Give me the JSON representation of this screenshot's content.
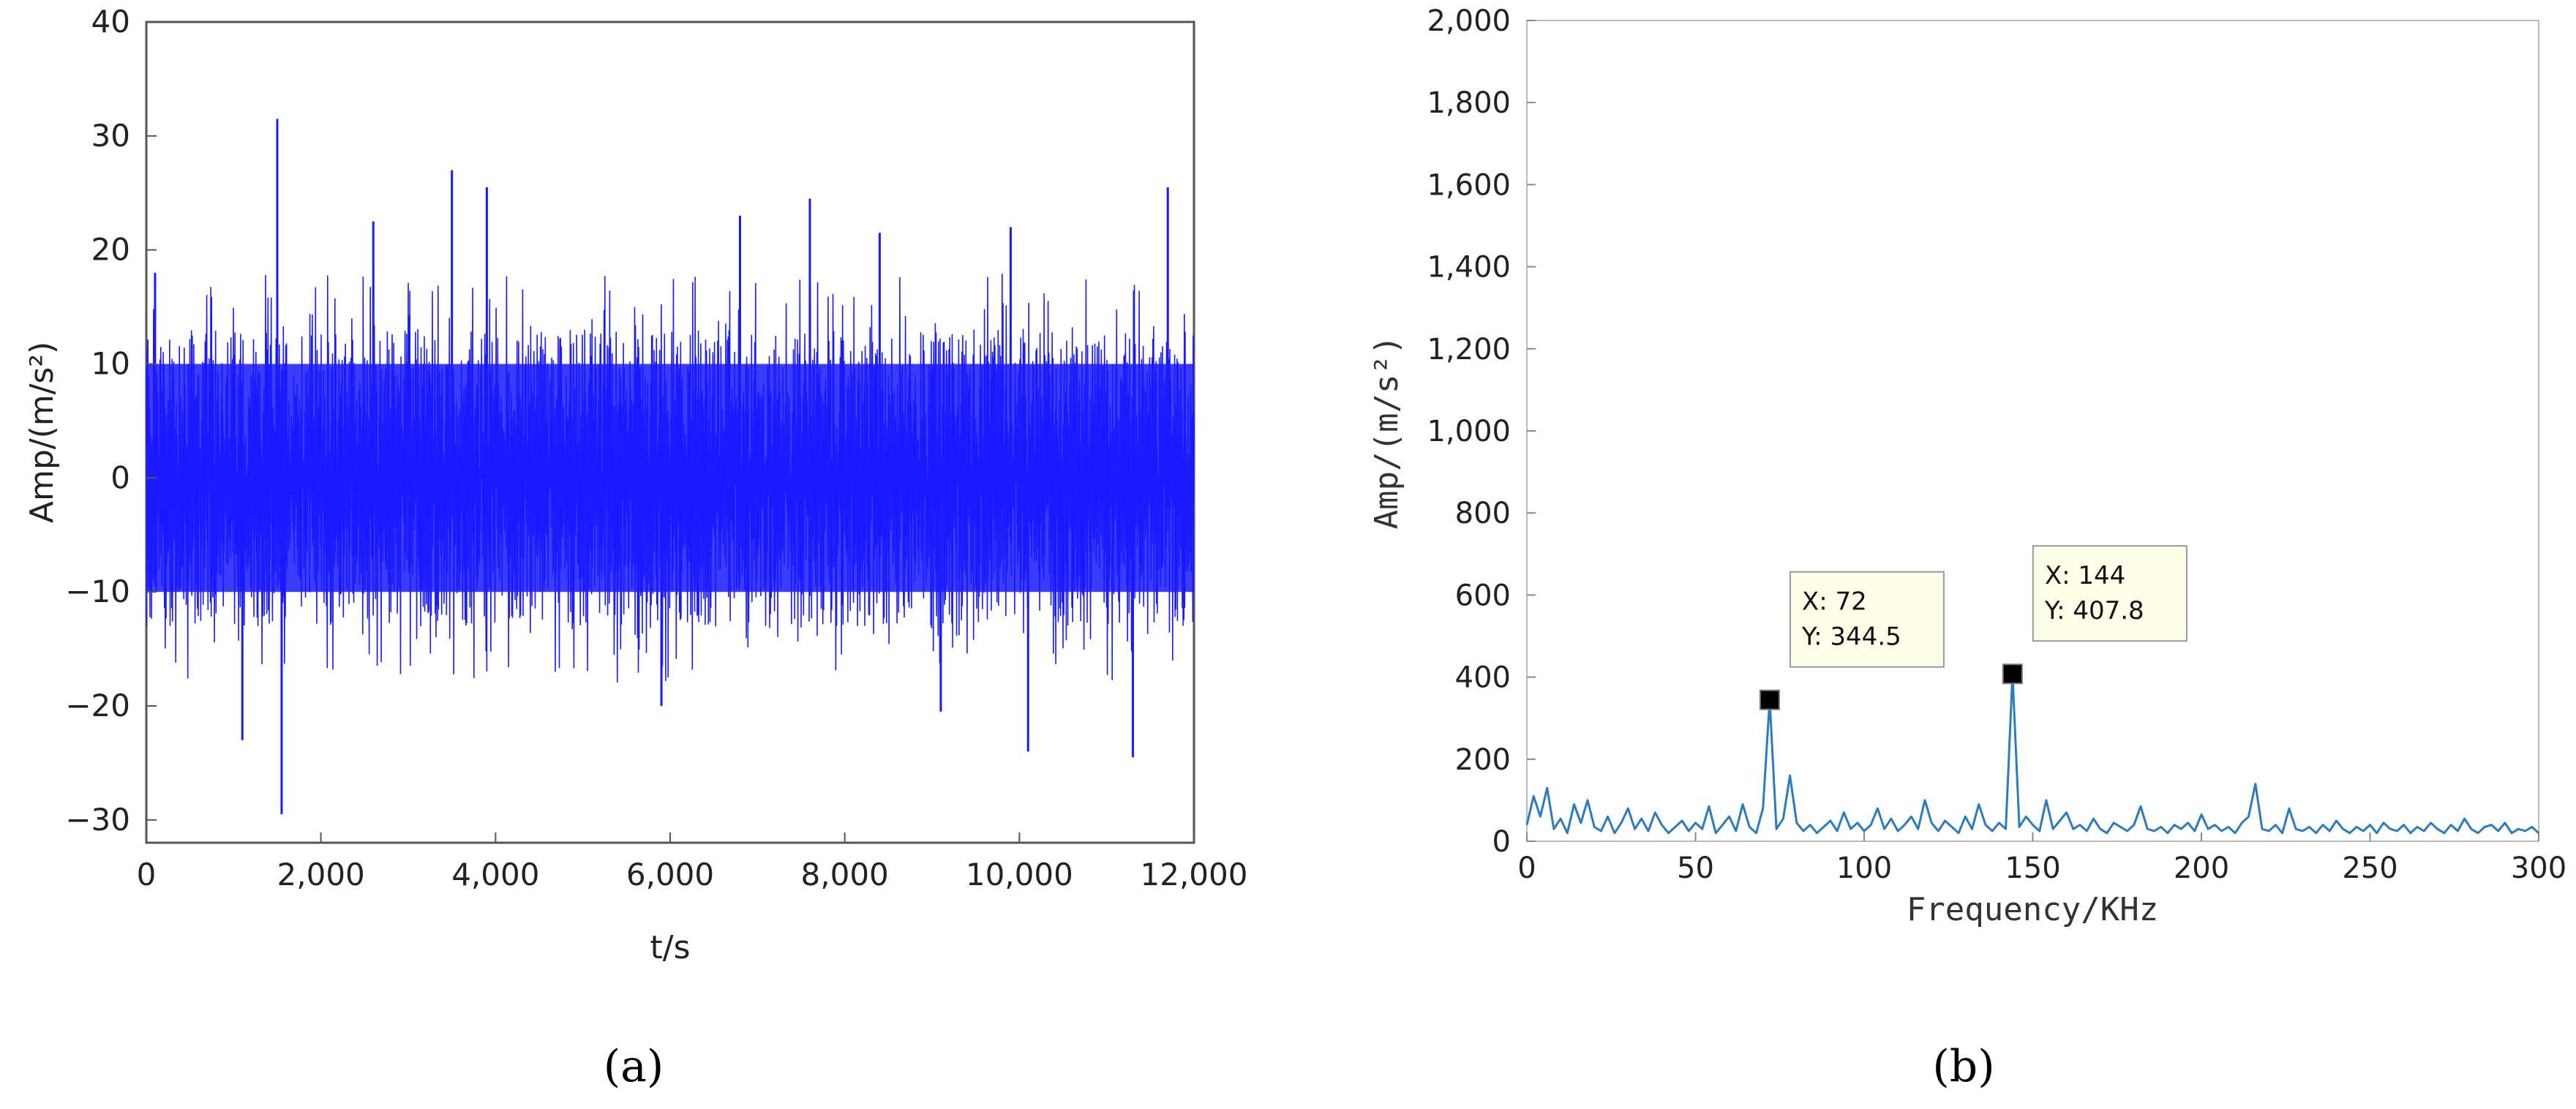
{
  "chart_data": [
    {
      "type": "line",
      "panel_label": "(a)",
      "xlabel": "t/s",
      "ylabel": "Amp/(m/s²)",
      "xlim": [
        0,
        12000
      ],
      "ylim": [
        -32,
        40
      ],
      "x_ticks": [
        0,
        2000,
        4000,
        6000,
        8000,
        10000,
        12000
      ],
      "x_tick_labels": [
        "0",
        "2,000",
        "4,000",
        "6,000",
        "8,000",
        "10,000",
        "12,000"
      ],
      "y_ticks": [
        -30,
        -20,
        -10,
        0,
        10,
        20,
        30,
        40
      ],
      "y_tick_labels": [
        "−30",
        "−20",
        "−10",
        "0",
        "10",
        "20",
        "30",
        "40"
      ],
      "series": [
        {
          "color": "#1a1aff",
          "envelope_band": [
            -10,
            10
          ],
          "peaks": [
            {
              "x": 1500,
              "y": 31.5
            },
            {
              "x": 3500,
              "y": 27
            },
            {
              "x": 3900,
              "y": 25.5
            },
            {
              "x": 7600,
              "y": 24.5
            },
            {
              "x": 11700,
              "y": 25.5
            },
            {
              "x": 6800,
              "y": 23
            },
            {
              "x": 2600,
              "y": 22.5
            },
            {
              "x": 9900,
              "y": 22
            },
            {
              "x": 8400,
              "y": 21.5
            },
            {
              "x": 100,
              "y": 18
            },
            {
              "x": 1550,
              "y": -29.5
            },
            {
              "x": 1100,
              "y": -23
            },
            {
              "x": 10100,
              "y": -24
            },
            {
              "x": 11300,
              "y": -24.5
            },
            {
              "x": 5900,
              "y": -20
            },
            {
              "x": 9100,
              "y": -20.5
            }
          ]
        }
      ],
      "grid": false
    },
    {
      "type": "line",
      "panel_label": "(b)",
      "xlabel": "Frequency/KHz",
      "ylabel": "Amp/(m/s²)",
      "xlim": [
        0,
        300
      ],
      "ylim": [
        0,
        2000
      ],
      "x_ticks": [
        0,
        50,
        100,
        150,
        200,
        250,
        300
      ],
      "x_tick_labels": [
        "0",
        "50",
        "100",
        "150",
        "200",
        "250",
        "300"
      ],
      "y_ticks": [
        0,
        200,
        400,
        600,
        800,
        1000,
        1200,
        1400,
        1600,
        1800,
        2000
      ],
      "y_tick_labels": [
        "0",
        "200",
        "400",
        "600",
        "800",
        "1,000",
        "1,200",
        "1,400",
        "1,600",
        "1,800",
        "2,000"
      ],
      "series": [
        {
          "color": "#2b7bc0",
          "x": [
            0,
            2,
            4,
            6,
            8,
            10,
            12,
            14,
            16,
            18,
            20,
            22,
            24,
            26,
            28,
            30,
            32,
            34,
            36,
            38,
            40,
            42,
            44,
            46,
            48,
            50,
            52,
            54,
            56,
            58,
            60,
            62,
            64,
            66,
            68,
            70,
            72,
            74,
            76,
            78,
            80,
            82,
            84,
            86,
            88,
            90,
            92,
            94,
            96,
            98,
            100,
            102,
            104,
            106,
            108,
            110,
            112,
            114,
            116,
            118,
            120,
            122,
            124,
            126,
            128,
            130,
            132,
            134,
            136,
            138,
            140,
            142,
            144,
            146,
            148,
            150,
            152,
            154,
            156,
            158,
            160,
            162,
            164,
            166,
            168,
            170,
            172,
            174,
            176,
            178,
            180,
            182,
            184,
            186,
            188,
            190,
            192,
            194,
            196,
            198,
            200,
            202,
            204,
            206,
            208,
            210,
            212,
            214,
            216,
            218,
            220,
            222,
            224,
            226,
            228,
            230,
            232,
            234,
            236,
            238,
            240,
            242,
            244,
            246,
            248,
            250,
            252,
            254,
            256,
            258,
            260,
            262,
            264,
            266,
            268,
            270,
            272,
            274,
            276,
            278,
            280,
            282,
            284,
            286,
            288,
            290,
            292,
            294,
            296,
            298,
            300
          ],
          "y": [
            40,
            110,
            60,
            130,
            30,
            55,
            20,
            90,
            45,
            100,
            35,
            25,
            60,
            20,
            45,
            80,
            30,
            55,
            25,
            70,
            40,
            20,
            35,
            50,
            25,
            45,
            30,
            85,
            20,
            40,
            60,
            25,
            90,
            35,
            20,
            80,
            344.5,
            30,
            55,
            160,
            45,
            25,
            40,
            20,
            35,
            50,
            25,
            70,
            30,
            45,
            25,
            40,
            80,
            30,
            55,
            25,
            40,
            60,
            30,
            100,
            45,
            25,
            50,
            35,
            20,
            60,
            30,
            90,
            40,
            25,
            45,
            30,
            407.8,
            35,
            60,
            40,
            25,
            100,
            30,
            50,
            70,
            30,
            40,
            25,
            55,
            30,
            20,
            45,
            35,
            25,
            40,
            85,
            30,
            25,
            35,
            20,
            40,
            30,
            45,
            25,
            65,
            30,
            40,
            25,
            35,
            20,
            45,
            60,
            140,
            30,
            25,
            40,
            20,
            80,
            30,
            25,
            35,
            20,
            40,
            25,
            50,
            30,
            20,
            35,
            25,
            40,
            20,
            45,
            30,
            25,
            40,
            20,
            35,
            25,
            45,
            30,
            20,
            40,
            25,
            55,
            30,
            20,
            35,
            40,
            25,
            45,
            20,
            30,
            25,
            35,
            20
          ]
        }
      ],
      "annotations": [
        {
          "x": 72,
          "y": 344.5,
          "text": [
            "X: 72",
            "Y: 344.5"
          ]
        },
        {
          "x": 144,
          "y": 407.8,
          "text": [
            "X: 144",
            "Y: 407.8"
          ]
        }
      ],
      "grid": false
    }
  ]
}
